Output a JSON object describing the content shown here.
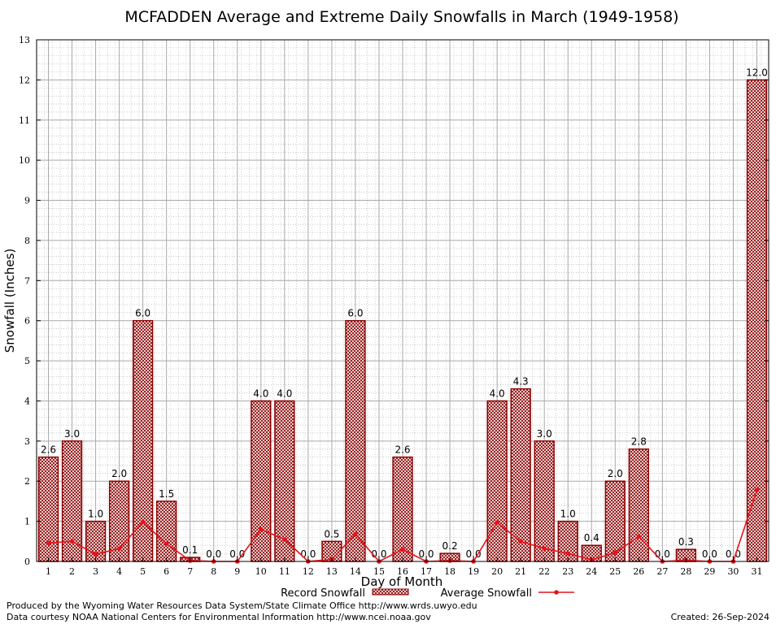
{
  "chart_data": {
    "type": "bar",
    "title": "MCFADDEN Average and Extreme Daily Snowfalls in March (1949-1958)",
    "xlabel": "Day of Month",
    "ylabel": "Snowfall (Inches)",
    "ylim": [
      0,
      13
    ],
    "yticks": [
      "0",
      "1",
      "2",
      "3",
      "4",
      "5",
      "6",
      "7",
      "8",
      "9",
      "10",
      "11",
      "12",
      "13"
    ],
    "categories": [
      "1",
      "2",
      "3",
      "4",
      "5",
      "6",
      "7",
      "8",
      "9",
      "10",
      "11",
      "12",
      "13",
      "14",
      "15",
      "16",
      "17",
      "18",
      "19",
      "20",
      "21",
      "22",
      "23",
      "24",
      "25",
      "26",
      "27",
      "28",
      "29",
      "30",
      "31"
    ],
    "grid": true,
    "legend_position": "bottom",
    "series": [
      {
        "name": "Record Snowfall",
        "kind": "bar",
        "values": [
          2.6,
          3.0,
          1.0,
          2.0,
          6.0,
          1.5,
          0.1,
          0.0,
          0.0,
          4.0,
          4.0,
          0.0,
          0.5,
          6.0,
          0.0,
          2.6,
          0.0,
          0.2,
          0.0,
          4.0,
          4.3,
          3.0,
          1.0,
          0.4,
          2.0,
          2.8,
          0.0,
          0.3,
          0.0,
          0.0,
          12.0
        ],
        "labels": [
          "2.6",
          "3.0",
          "1.0",
          "2.0",
          "6.0",
          "1.5",
          "0.1",
          "0.0",
          "0.0",
          "4.0",
          "4.0",
          "0.0",
          "0.5",
          "6.0",
          "0.0",
          "2.6",
          "0.0",
          "0.2",
          "0.0",
          "4.0",
          "4.3",
          "3.0",
          "1.0",
          "0.4",
          "2.0",
          "2.8",
          "0.0",
          "0.3",
          "0.0",
          "0.0",
          "12.0"
        ]
      },
      {
        "name": "Average Snowfall",
        "kind": "line",
        "values": [
          0.46,
          0.5,
          0.18,
          0.32,
          0.98,
          0.44,
          0.02,
          0.0,
          0.0,
          0.8,
          0.55,
          0.0,
          0.05,
          0.68,
          0.0,
          0.3,
          0.0,
          0.02,
          0.0,
          0.97,
          0.5,
          0.32,
          0.2,
          0.04,
          0.22,
          0.62,
          0.0,
          0.03,
          0.0,
          0.0,
          1.78
        ]
      }
    ],
    "colors": {
      "bar_stroke": "#8b0000",
      "line": "#e8121a",
      "grid": "#a9a9a9"
    }
  },
  "footer": {
    "produced_by": "Produced by the Wyoming Water Resources Data System/State Climate Office http://www.wrds.uwyo.edu",
    "courtesy": "Data courtesy NOAA National Centers for Environmental Information http://www.ncei.noaa.gov",
    "created": "Created:  26-Sep-2024"
  }
}
